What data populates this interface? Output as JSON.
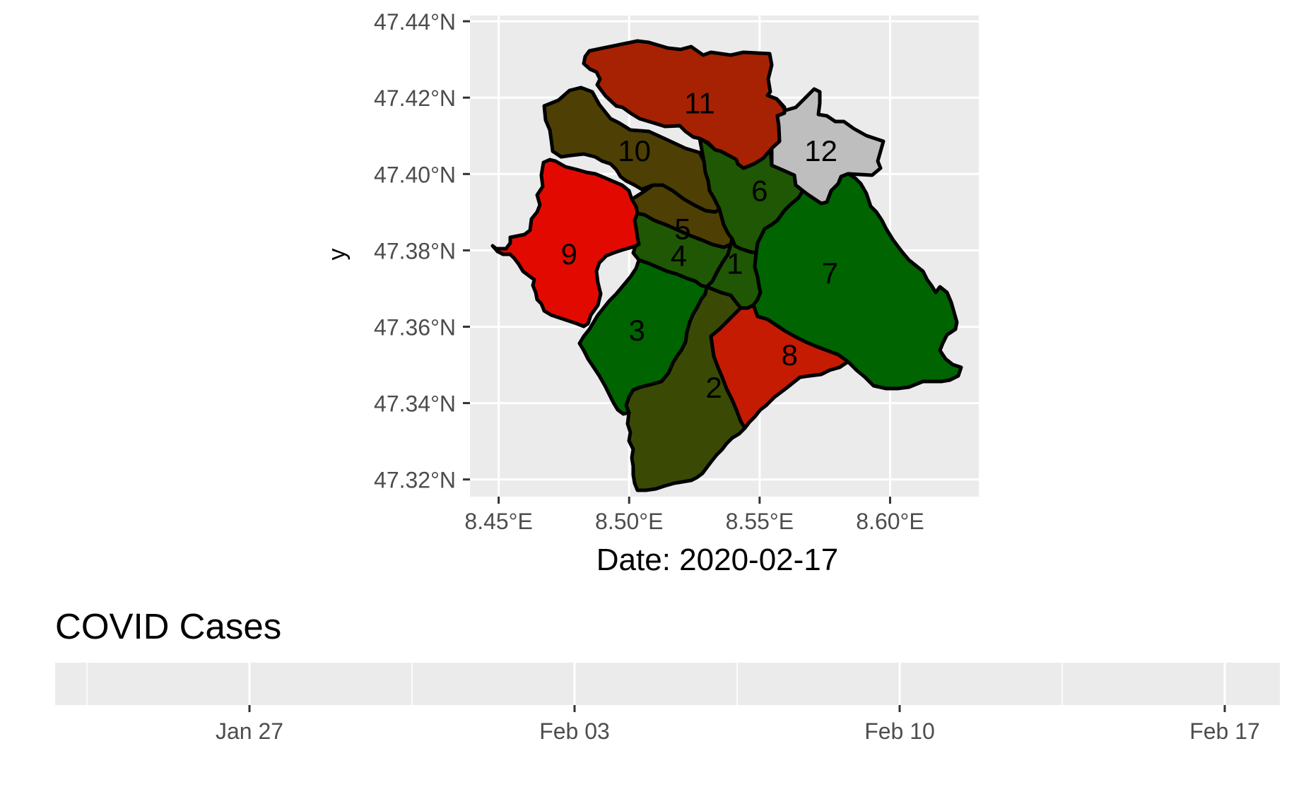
{
  "map": {
    "x_axis": {
      "ticks": [
        {
          "value": 8.45,
          "label": "8.45°E"
        },
        {
          "value": 8.5,
          "label": "8.50°E"
        },
        {
          "value": 8.55,
          "label": "8.55°E"
        },
        {
          "value": 8.6,
          "label": "8.60°E"
        }
      ],
      "label": "Date:  2020-02-17",
      "range": [
        8.439,
        8.634
      ]
    },
    "y_axis": {
      "ticks": [
        {
          "value": 47.44,
          "label": "47.44°N"
        },
        {
          "value": 47.42,
          "label": "47.42°N"
        },
        {
          "value": 47.4,
          "label": "47.40°N"
        },
        {
          "value": 47.38,
          "label": "47.38°N"
        },
        {
          "value": 47.36,
          "label": "47.36°N"
        },
        {
          "value": 47.34,
          "label": "47.34°N"
        },
        {
          "value": 47.32,
          "label": "47.32°N"
        }
      ],
      "label": "y",
      "range": [
        47.3155,
        47.4415
      ]
    },
    "panel_background": "#ebebeb",
    "gridline_color": "#ffffff",
    "districts": [
      {
        "label": "1",
        "color": "#1f5704",
        "label_at": [
          8.5405,
          47.3765
        ]
      },
      {
        "label": "2",
        "color": "#3a4a05",
        "label_at": [
          8.5325,
          47.344
        ]
      },
      {
        "label": "3",
        "color": "#006400",
        "label_at": [
          8.503,
          47.359
        ]
      },
      {
        "label": "4",
        "color": "#1f5704",
        "label_at": [
          8.519,
          47.3785
        ]
      },
      {
        "label": "5",
        "color": "#4e3f04",
        "label_at": [
          8.5205,
          47.3855
        ]
      },
      {
        "label": "6",
        "color": "#1f5704",
        "label_at": [
          8.55,
          47.3955
        ]
      },
      {
        "label": "7",
        "color": "#006400",
        "label_at": [
          8.577,
          47.374
        ]
      },
      {
        "label": "8",
        "color": "#c51b03",
        "label_at": [
          8.5615,
          47.3525
        ]
      },
      {
        "label": "9",
        "color": "#e20a00",
        "label_at": [
          8.477,
          47.379
        ]
      },
      {
        "label": "10",
        "color": "#4e3f04",
        "label_at": [
          8.502,
          47.406
        ]
      },
      {
        "label": "11",
        "color": "#a72202",
        "label_at": [
          8.527,
          47.4185
        ]
      },
      {
        "label": "12",
        "color": "#bebebe",
        "label_at": [
          8.5735,
          47.406
        ]
      }
    ]
  },
  "timeline": {
    "title": "COVID Cases",
    "ticks": [
      "Jan 27",
      "Feb 03",
      "Feb 10",
      "Feb 17"
    ]
  }
}
